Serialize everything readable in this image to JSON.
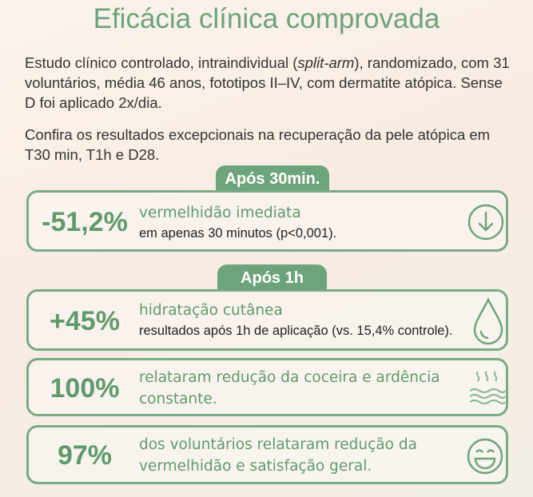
{
  "header": {
    "title": "Eficácia clínica comprovada"
  },
  "intro": {
    "parts": [
      "Estudo clínico controlado, intraindividual (",
      "split-arm",
      "), randomizado, com 31 voluntários, média 46 anos, fototipos II–IV, com dermatite atópica. Sense D foi aplicado 2x/dia."
    ],
    "note": "Confira os resultados excepcionais na recuperação da pele atópica em T30 min, T1h e D28."
  },
  "sections": [
    {
      "badge": "Após 30min.",
      "cards": [
        {
          "stat": "-51,2%",
          "headline": "vermelhidão imediata",
          "detail": "em apenas 30 minutos (p<0,001)."
        }
      ]
    },
    {
      "badge": "Após 1h",
      "cards": [
        {
          "stat": "+45%",
          "headline": "hidratação cutânea",
          "detail": "resultados após 1h de aplicação (vs. 15,4% controle)."
        },
        {
          "stat": "100%",
          "headline": "relataram redução da coceira e ardência constante."
        },
        {
          "stat": "97%",
          "headline": "dos voluntários relataram redução da vermelhidão e satisfação geral."
        }
      ]
    }
  ]
}
